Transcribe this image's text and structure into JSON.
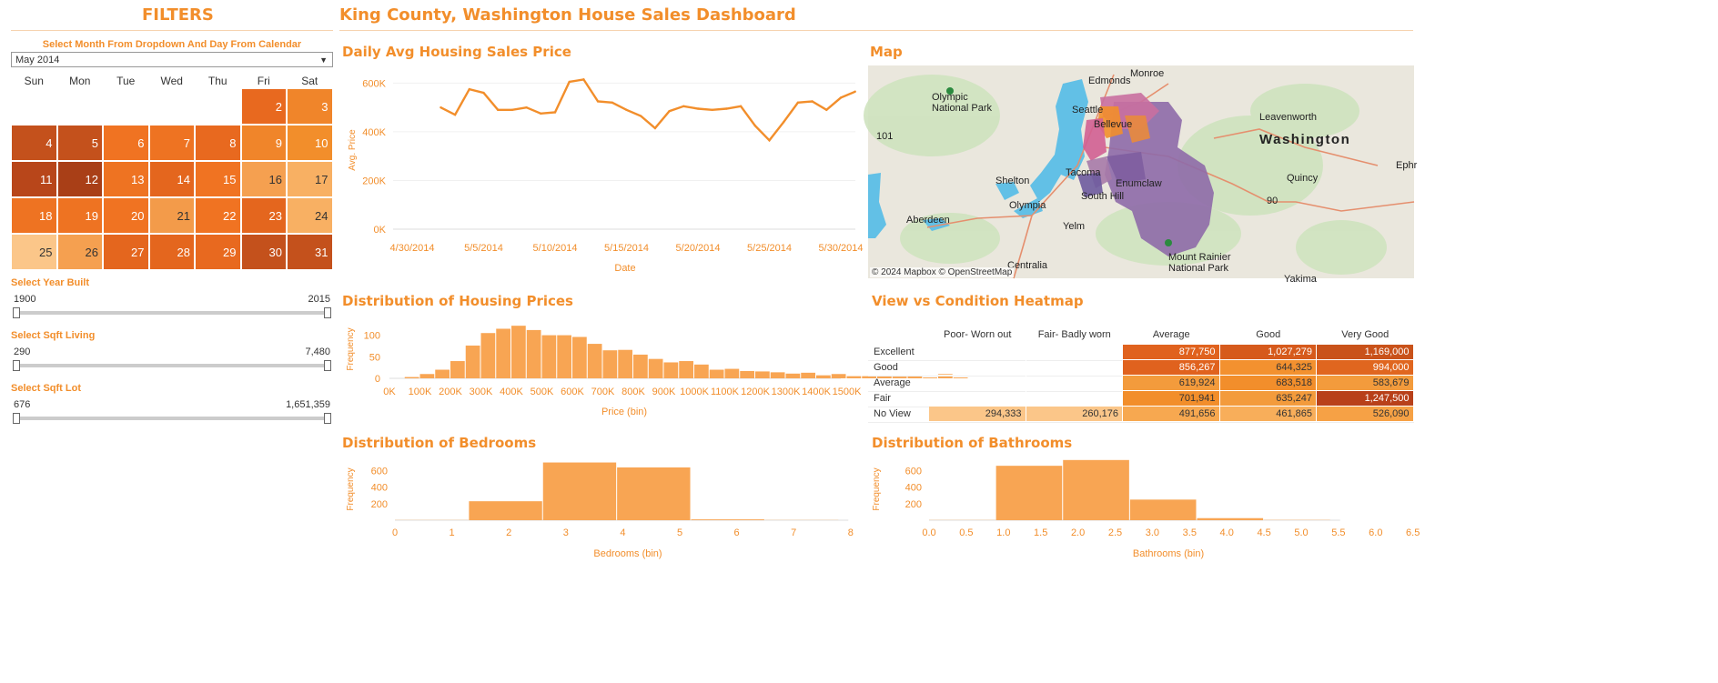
{
  "filters_title": "FILTERS",
  "dashboard_title": "King County, Washington House Sales Dashboard",
  "calendar": {
    "label": "Select Month From Dropdown And Day From Calendar",
    "selected_month": "May 2014",
    "weekdays": [
      "Sun",
      "Mon",
      "Tue",
      "Wed",
      "Thu",
      "Fri",
      "Sat"
    ],
    "days": [
      {
        "day": "2",
        "col": 5,
        "row": 0,
        "color": "#e8691f"
      },
      {
        "day": "3",
        "col": 6,
        "row": 0,
        "color": "#f0852a"
      },
      {
        "day": "4",
        "col": 0,
        "row": 1,
        "color": "#c4511c"
      },
      {
        "day": "5",
        "col": 1,
        "row": 1,
        "color": "#c4511c"
      },
      {
        "day": "6",
        "col": 2,
        "row": 1,
        "color": "#f07322"
      },
      {
        "day": "7",
        "col": 3,
        "row": 1,
        "color": "#ee7322"
      },
      {
        "day": "8",
        "col": 4,
        "row": 1,
        "color": "#e8691f"
      },
      {
        "day": "9",
        "col": 5,
        "row": 1,
        "color": "#f0852a"
      },
      {
        "day": "10",
        "col": 6,
        "row": 1,
        "color": "#f28e2b"
      },
      {
        "day": "11",
        "col": 0,
        "row": 2,
        "color": "#b8461a"
      },
      {
        "day": "12",
        "col": 1,
        "row": 2,
        "color": "#a93f17"
      },
      {
        "day": "13",
        "col": 2,
        "row": 2,
        "color": "#ee7322"
      },
      {
        "day": "14",
        "col": 3,
        "row": 2,
        "color": "#e4661e"
      },
      {
        "day": "15",
        "col": 4,
        "row": 2,
        "color": "#f07322"
      },
      {
        "day": "16",
        "col": 5,
        "row": 2,
        "color": "#f5a050"
      },
      {
        "day": "17",
        "col": 6,
        "row": 2,
        "color": "#f8b063"
      },
      {
        "day": "18",
        "col": 0,
        "row": 3,
        "color": "#ee7322"
      },
      {
        "day": "19",
        "col": 1,
        "row": 3,
        "color": "#ee7322"
      },
      {
        "day": "20",
        "col": 2,
        "row": 3,
        "color": "#f07322"
      },
      {
        "day": "21",
        "col": 3,
        "row": 3,
        "color": "#f39b4a"
      },
      {
        "day": "22",
        "col": 4,
        "row": 3,
        "color": "#f07322"
      },
      {
        "day": "23",
        "col": 5,
        "row": 3,
        "color": "#e4661e"
      },
      {
        "day": "24",
        "col": 6,
        "row": 3,
        "color": "#f8b063"
      },
      {
        "day": "25",
        "col": 0,
        "row": 4,
        "color": "#fbc689"
      },
      {
        "day": "26",
        "col": 1,
        "row": 4,
        "color": "#f5a050"
      },
      {
        "day": "27",
        "col": 2,
        "row": 4,
        "color": "#e4661e"
      },
      {
        "day": "28",
        "col": 3,
        "row": 4,
        "color": "#e4661e"
      },
      {
        "day": "29",
        "col": 4,
        "row": 4,
        "color": "#e8691f"
      },
      {
        "day": "30",
        "col": 5,
        "row": 4,
        "color": "#c4511c"
      },
      {
        "day": "31",
        "col": 6,
        "row": 4,
        "color": "#c4511c"
      }
    ]
  },
  "sliders": [
    {
      "label": "Select Year Built",
      "min": "1900",
      "max": "2015"
    },
    {
      "label": "Select Sqft Living",
      "min": "290",
      "max": "7,480"
    },
    {
      "label": "Select Sqft Lot",
      "min": "676",
      "max": "1,651,359"
    }
  ],
  "section_titles": {
    "line": "Daily Avg Housing Sales Price",
    "map": "Map",
    "price_hist": "Distribution of Housing Prices",
    "heatmap": "View vs Condition Heatmap",
    "bedrooms": "Distribution of Bedrooms",
    "bathrooms": "Distribution of Bathrooms"
  },
  "map": {
    "attribution": "© 2024 Mapbox © OpenStreetMap",
    "places": [
      {
        "name": "Monroe",
        "big": false
      },
      {
        "name": "Edmonds",
        "big": false
      },
      {
        "name": "Olympic\nNational Park",
        "big": false
      },
      {
        "name": "Leavenworth",
        "big": false
      },
      {
        "name": "Washington",
        "big": true
      },
      {
        "name": "Seattle",
        "big": false
      },
      {
        "name": "Tacoma",
        "big": false
      },
      {
        "name": "Shelton",
        "big": false
      },
      {
        "name": "South Hill",
        "big": false
      },
      {
        "name": "Olympia",
        "big": false
      },
      {
        "name": "Aberdeen",
        "big": false
      },
      {
        "name": "Yelm",
        "big": false
      },
      {
        "name": "Quincy",
        "big": false
      },
      {
        "name": "Centralia",
        "big": false
      },
      {
        "name": "Mount Rainier\nNational Park",
        "big": false
      },
      {
        "name": "Yakima",
        "big": false
      },
      {
        "name": "Ephr",
        "big": false
      },
      {
        "name": "101",
        "big": false
      },
      {
        "name": "90",
        "big": false
      },
      {
        "name": "Bellevue",
        "big": false
      },
      {
        "name": "Enumclaw",
        "big": false
      }
    ]
  },
  "colors": {
    "accent": "#f28e2b",
    "bar": "#f8a553",
    "title": "#f28e2b"
  },
  "chart_data": [
    {
      "type": "line",
      "title": "Daily Avg Housing Sales Price",
      "xlabel": "Date",
      "ylabel": "Avg. Price",
      "x_ticks": [
        "4/30/2014",
        "5/5/2014",
        "5/10/2014",
        "5/15/2014",
        "5/20/2014",
        "5/25/2014",
        "5/30/2014"
      ],
      "y_ticks": [
        "0K",
        "200K",
        "400K",
        "600K"
      ],
      "ylim": [
        0,
        650000
      ],
      "x": [
        "2014-05-02",
        "2014-05-03",
        "2014-05-04",
        "2014-05-05",
        "2014-05-06",
        "2014-05-07",
        "2014-05-08",
        "2014-05-09",
        "2014-05-10",
        "2014-05-11",
        "2014-05-12",
        "2014-05-13",
        "2014-05-14",
        "2014-05-15",
        "2014-05-16",
        "2014-05-17",
        "2014-05-18",
        "2014-05-19",
        "2014-05-20",
        "2014-05-21",
        "2014-05-22",
        "2014-05-23",
        "2014-05-24",
        "2014-05-25",
        "2014-05-26",
        "2014-05-27",
        "2014-05-28",
        "2014-05-29",
        "2014-05-30",
        "2014-05-31"
      ],
      "series": [
        {
          "values": [
            500000,
            470000,
            575000,
            560000,
            490000,
            490000,
            500000,
            475000,
            480000,
            605000,
            615000,
            525000,
            520000,
            490000,
            465000,
            415000,
            485000,
            505000,
            495000,
            490000,
            495000,
            505000,
            425000,
            365000,
            440000,
            520000,
            525000,
            490000,
            540000,
            565000
          ]
        }
      ]
    },
    {
      "type": "bar",
      "title": "Distribution of Housing Prices",
      "xlabel": "Price (bin)",
      "ylabel": "Frequency",
      "x_ticks": [
        "0K",
        "100K",
        "200K",
        "300K",
        "400K",
        "500K",
        "600K",
        "700K",
        "800K",
        "900K",
        "1000K",
        "1100K",
        "1200K",
        "1300K",
        "1400K",
        "1500K"
      ],
      "y_ticks": [
        "0",
        "50",
        "100"
      ],
      "ylim": [
        0,
        135
      ],
      "bin_start": 0,
      "bin_width": 50000,
      "values": [
        0,
        3,
        10,
        20,
        40,
        76,
        105,
        115,
        122,
        112,
        100,
        100,
        96,
        80,
        65,
        66,
        55,
        45,
        37,
        40,
        32,
        20,
        22,
        17,
        16,
        14,
        11,
        13,
        7,
        10,
        5,
        5,
        6,
        4,
        6,
        2,
        10,
        2
      ]
    },
    {
      "type": "heatmap",
      "title": "View vs Condition Heatmap",
      "columns": [
        "Poor- Worn out",
        "Fair- Badly worn",
        "Average",
        "Good",
        "Very Good"
      ],
      "rows": [
        "Excellent",
        "Good",
        "Average",
        "Fair",
        "No View"
      ],
      "values": [
        [
          "",
          "",
          "877,750",
          "1,027,279",
          "1,169,000"
        ],
        [
          "",
          "",
          "856,267",
          "644,325",
          "994,000"
        ],
        [
          "",
          "",
          "619,924",
          "683,518",
          "583,679"
        ],
        [
          "",
          "",
          "701,941",
          "635,247",
          "1,247,500"
        ],
        [
          "294,333",
          "260,176",
          "491,656",
          "461,865",
          "526,090"
        ]
      ],
      "cell_colors": [
        [
          "",
          "",
          "#e0621e",
          "#d65a1c",
          "#c9521a"
        ],
        [
          "",
          "",
          "#e0621e",
          "#f3912f",
          "#e0661f"
        ],
        [
          "",
          "",
          "#f39b3c",
          "#f28e2b",
          "#f39b3c"
        ],
        [
          "",
          "",
          "#f28e2b",
          "#f39b3c",
          "#b8401a"
        ],
        [
          "#fbc689",
          "#fbc689",
          "#f7a850",
          "#f8ae5a",
          "#f6a145"
        ]
      ]
    },
    {
      "type": "bar",
      "title": "Distribution of Bedrooms",
      "xlabel": "Bedrooms (bin)",
      "ylabel": "Frequency",
      "x_ticks": [
        "0",
        "1",
        "2",
        "3",
        "4",
        "5",
        "6",
        "7",
        "8"
      ],
      "y_ticks": [
        "200",
        "400",
        "600"
      ],
      "ylim": [
        0,
        750
      ],
      "bin_edges": [
        0,
        1.3,
        2.6,
        3.9,
        5.2,
        6.5,
        7.8
      ],
      "values": [
        2,
        230,
        700,
        640,
        10,
        2
      ]
    },
    {
      "type": "bar",
      "title": "Distribution of Bathrooms",
      "xlabel": "Bathrooms (bin)",
      "ylabel": "Frequency",
      "x_ticks": [
        "0.0",
        "0.5",
        "1.0",
        "1.5",
        "2.0",
        "2.5",
        "3.0",
        "3.5",
        "4.0",
        "4.5",
        "5.0",
        "5.5",
        "6.0",
        "6.5"
      ],
      "y_ticks": [
        "200",
        "400",
        "600"
      ],
      "ylim": [
        0,
        750
      ],
      "bin_edges": [
        0,
        0.9,
        1.8,
        2.7,
        3.6,
        4.5,
        5.4
      ],
      "values": [
        2,
        660,
        730,
        250,
        25,
        3
      ]
    }
  ]
}
